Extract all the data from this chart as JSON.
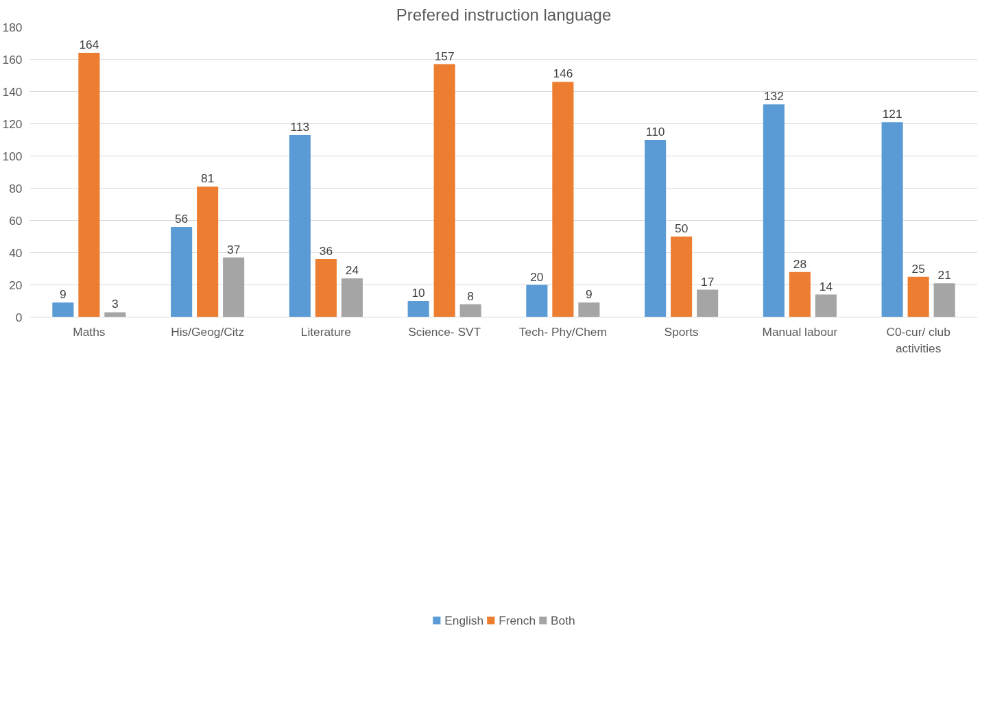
{
  "chart_data": {
    "type": "bar",
    "title": "Prefered instruction language",
    "categories": [
      "Maths",
      "His/Geog/Citz",
      "Literature",
      "Science- SVT",
      "Tech- Phy/Chem",
      "Sports",
      "Manual labour",
      "C0-cur/ club activities"
    ],
    "series": [
      {
        "name": "English",
        "color": "#5b9bd5",
        "values": [
          9,
          56,
          113,
          10,
          20,
          110,
          132,
          121
        ]
      },
      {
        "name": "French",
        "color": "#ed7d31",
        "values": [
          164,
          81,
          36,
          157,
          146,
          50,
          28,
          25
        ]
      },
      {
        "name": "Both",
        "color": "#a5a5a5",
        "values": [
          3,
          37,
          24,
          8,
          9,
          17,
          14,
          21
        ]
      }
    ],
    "ylim": [
      0,
      180
    ],
    "yticks": [
      0,
      20,
      40,
      60,
      80,
      100,
      120,
      140,
      160,
      180
    ],
    "grid": "y",
    "legend": "bottom",
    "data_labels": true
  }
}
